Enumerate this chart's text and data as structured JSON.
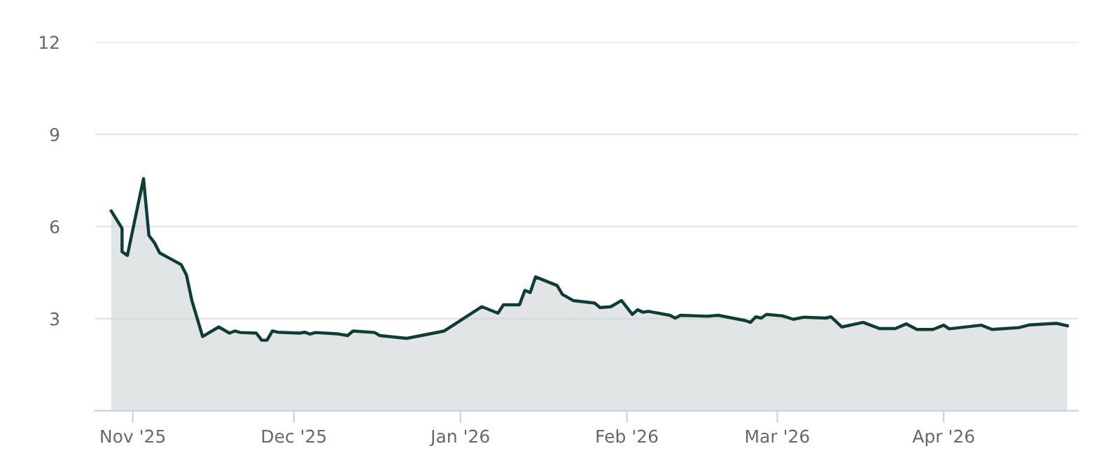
{
  "chart_data": {
    "type": "area",
    "x": [
      "2025-10-28",
      "2025-10-30",
      "2025-10-30",
      "2025-10-31",
      "2025-11-03",
      "2025-11-04",
      "2025-11-05",
      "2025-11-06",
      "2025-11-08",
      "2025-11-10",
      "2025-11-11",
      "2025-11-12",
      "2025-11-14",
      "2025-11-17",
      "2025-11-19",
      "2025-11-20",
      "2025-11-21",
      "2025-11-24",
      "2025-11-25",
      "2025-11-26",
      "2025-11-27",
      "2025-11-28",
      "2025-12-02",
      "2025-12-03",
      "2025-12-04",
      "2025-12-05",
      "2025-12-09",
      "2025-12-11",
      "2025-12-12",
      "2025-12-16",
      "2025-12-17",
      "2025-12-22",
      "2025-12-29",
      "2026-01-05",
      "2026-01-08",
      "2026-01-09",
      "2026-01-12",
      "2026-01-13",
      "2026-01-14",
      "2026-01-15",
      "2026-01-19",
      "2026-01-20",
      "2026-01-22",
      "2026-01-26",
      "2026-01-27",
      "2026-01-29",
      "2026-01-31",
      "2026-02-02",
      "2026-02-03",
      "2026-02-04",
      "2026-02-05",
      "2026-02-09",
      "2026-02-10",
      "2026-02-11",
      "2026-02-16",
      "2026-02-18",
      "2026-02-23",
      "2026-02-24",
      "2026-02-25",
      "2026-02-26",
      "2026-02-27",
      "2026-03-02",
      "2026-03-04",
      "2026-03-06",
      "2026-03-10",
      "2026-03-11",
      "2026-03-13",
      "2026-03-17",
      "2026-03-20",
      "2026-03-23",
      "2026-03-25",
      "2026-03-27",
      "2026-03-30",
      "2026-04-01",
      "2026-04-02",
      "2026-04-08",
      "2026-04-10",
      "2026-04-15",
      "2026-04-17",
      "2026-04-22",
      "2026-04-24"
    ],
    "series": [
      {
        "color": "#0e3d38",
        "values": [
          6.5,
          5.94,
          5.18,
          5.06,
          7.56,
          5.71,
          5.48,
          5.14,
          4.95,
          4.76,
          4.42,
          3.59,
          2.42,
          2.73,
          2.53,
          2.6,
          2.55,
          2.53,
          2.3,
          2.3,
          2.6,
          2.56,
          2.53,
          2.56,
          2.5,
          2.55,
          2.51,
          2.45,
          2.6,
          2.55,
          2.45,
          2.36,
          2.6,
          3.39,
          3.18,
          3.45,
          3.45,
          3.92,
          3.85,
          4.36,
          4.08,
          3.79,
          3.59,
          3.51,
          3.36,
          3.39,
          3.59,
          3.14,
          3.29,
          3.21,
          3.24,
          3.11,
          3.02,
          3.11,
          3.08,
          3.11,
          2.94,
          2.88,
          3.06,
          3.02,
          3.14,
          3.09,
          2.98,
          3.05,
          3.02,
          3.06,
          2.73,
          2.88,
          2.68,
          2.68,
          2.83,
          2.65,
          2.65,
          2.79,
          2.67,
          2.79,
          2.65,
          2.71,
          2.8,
          2.85,
          2.77
        ]
      }
    ],
    "xlim": [
      "2025-10-25",
      "2026-04-26"
    ],
    "xticks": [
      {
        "value": "2025-11-01",
        "label": "Nov '25"
      },
      {
        "value": "2025-12-01",
        "label": "Dec '25"
      },
      {
        "value": "2026-01-01",
        "label": "Jan '26"
      },
      {
        "value": "2026-02-01",
        "label": "Feb '26"
      },
      {
        "value": "2026-03-01",
        "label": "Mar '26"
      },
      {
        "value": "2026-04-01",
        "label": "Apr '26"
      }
    ],
    "ylim": [
      0,
      12
    ],
    "yticks": [
      3,
      6,
      9,
      12
    ],
    "grid": "y",
    "legend": false,
    "marker": "none",
    "line_style": "solid"
  }
}
